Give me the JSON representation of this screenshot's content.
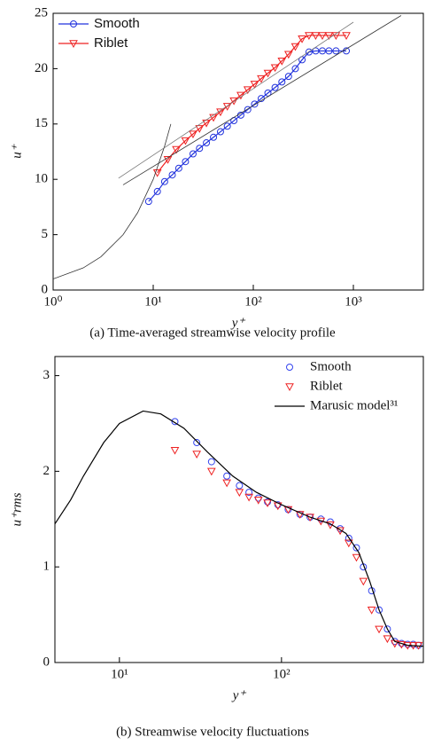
{
  "chart_data": [
    {
      "type": "line",
      "caption": "(a) Time-averaged streamwise velocity profile",
      "x_label": "y⁺",
      "y_label": "u⁺",
      "log_x": true,
      "xlim": [
        1,
        5000
      ],
      "ylim": [
        0,
        25
      ],
      "xticks": [
        {
          "value": 1,
          "label": "10⁰"
        },
        {
          "value": 10,
          "label": "10¹"
        },
        {
          "value": 100,
          "label": "10²"
        },
        {
          "value": 1000,
          "label": "10³"
        }
      ],
      "yticks": [
        0,
        5,
        10,
        15,
        20,
        25
      ],
      "legend": "upper left",
      "series": [
        {
          "name": "Smooth",
          "color": "#2233dd",
          "marker": "circle",
          "line": true,
          "x": [
            9,
            11,
            13,
            15.5,
            18,
            21,
            25,
            29,
            34,
            40,
            47,
            55,
            64,
            75,
            88,
            103,
            120,
            140,
            165,
            193,
            225,
            263,
            307,
            360,
            420,
            490,
            570,
            670,
            850
          ],
          "values": [
            8.0,
            8.9,
            9.8,
            10.4,
            11.0,
            11.6,
            12.3,
            12.8,
            13.3,
            13.8,
            14.3,
            14.8,
            15.3,
            15.8,
            16.3,
            16.8,
            17.3,
            17.8,
            18.3,
            18.8,
            19.3,
            20.0,
            20.8,
            21.5,
            21.6,
            21.6,
            21.6,
            21.6,
            21.6
          ]
        },
        {
          "name": "Riblet",
          "color": "#ee2222",
          "marker": "triangle",
          "line": true,
          "x": [
            11,
            14,
            17,
            21,
            25,
            29,
            34,
            40,
            47,
            55,
            64,
            75,
            88,
            103,
            120,
            140,
            165,
            193,
            225,
            263,
            307,
            360,
            420,
            490,
            570,
            670,
            850
          ],
          "values": [
            10.6,
            11.8,
            12.7,
            13.5,
            14.1,
            14.6,
            15.1,
            15.6,
            16.1,
            16.6,
            17.1,
            17.6,
            18.1,
            18.6,
            19.1,
            19.6,
            20.1,
            20.7,
            21.3,
            22.0,
            22.7,
            23.0,
            23.0,
            23.0,
            23.0,
            23.0,
            23.0
          ]
        },
        {
          "color": "#333333",
          "line": true,
          "x": [
            1,
            2,
            3,
            5,
            7,
            10,
            13,
            15
          ],
          "values": [
            1,
            2,
            3,
            5,
            7,
            10,
            13,
            15
          ]
        },
        {
          "color": "#333333",
          "line": true,
          "x": [
            5,
            3000
          ],
          "values": [
            9.5,
            24.8
          ]
        },
        {
          "color": "#777777",
          "line": true,
          "x": [
            4.5,
            1000
          ],
          "values": [
            10.1,
            24.2
          ]
        }
      ]
    },
    {
      "type": "line",
      "caption": "(b) Streamwise velocity fluctuations",
      "x_label": "y⁺",
      "y_label": "u⁺rms",
      "log_x": true,
      "xlim": [
        4,
        750
      ],
      "ylim": [
        0,
        3.2
      ],
      "xticks": [
        {
          "value": 10,
          "label": "10¹"
        },
        {
          "value": 100,
          "label": "10²"
        }
      ],
      "yticks": [
        0,
        1,
        2,
        3
      ],
      "legend": "upper right",
      "series": [
        {
          "name": "Smooth",
          "color": "#3344ee",
          "marker": "circle",
          "line": false,
          "x": [
            22,
            30,
            37,
            46,
            55,
            63,
            72,
            82,
            95,
            110,
            130,
            150,
            175,
            200,
            230,
            260,
            290,
            320,
            360,
            400,
            450,
            500,
            550,
            600,
            650,
            700
          ],
          "values": [
            2.52,
            2.3,
            2.1,
            1.95,
            1.85,
            1.78,
            1.72,
            1.68,
            1.65,
            1.6,
            1.55,
            1.52,
            1.5,
            1.47,
            1.4,
            1.3,
            1.2,
            1.0,
            0.75,
            0.55,
            0.35,
            0.22,
            0.2,
            0.19,
            0.19,
            0.18
          ]
        },
        {
          "name": "Riblet",
          "color": "#ee2222",
          "marker": "triangle",
          "line": false,
          "x": [
            22,
            30,
            37,
            46,
            55,
            63,
            72,
            82,
            95,
            110,
            130,
            150,
            175,
            200,
            230,
            260,
            290,
            320,
            360,
            400,
            450,
            500,
            550,
            600,
            650,
            700
          ],
          "values": [
            2.22,
            2.18,
            2.0,
            1.88,
            1.78,
            1.73,
            1.7,
            1.67,
            1.64,
            1.6,
            1.55,
            1.52,
            1.48,
            1.44,
            1.38,
            1.25,
            1.1,
            0.85,
            0.55,
            0.35,
            0.25,
            0.2,
            0.19,
            0.18,
            0.18,
            0.18
          ]
        },
        {
          "name": "Marusic model³¹",
          "color": "#000000",
          "line": true,
          "x": [
            4,
            5,
            6,
            8,
            10,
            14,
            18,
            25,
            35,
            50,
            70,
            100,
            150,
            200,
            250,
            300,
            350,
            400,
            450,
            500,
            600,
            750
          ],
          "values": [
            1.45,
            1.7,
            1.95,
            2.3,
            2.5,
            2.63,
            2.6,
            2.45,
            2.2,
            1.95,
            1.78,
            1.65,
            1.52,
            1.45,
            1.35,
            1.15,
            0.85,
            0.55,
            0.35,
            0.22,
            0.18,
            0.17
          ]
        }
      ]
    }
  ]
}
